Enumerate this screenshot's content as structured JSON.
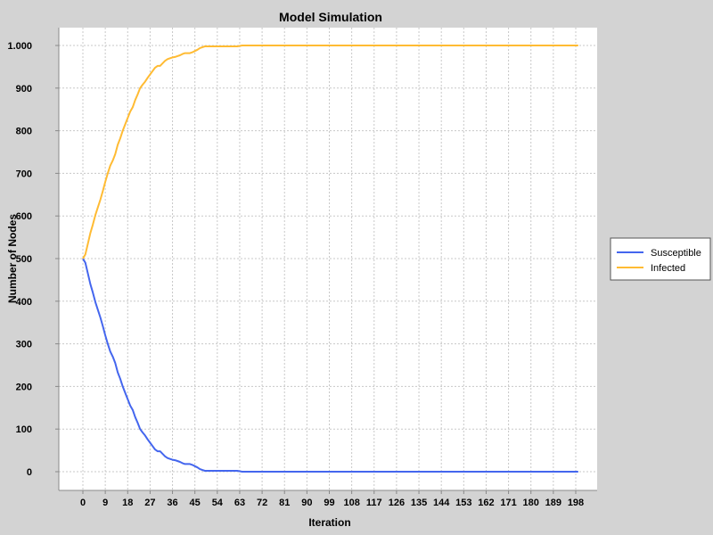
{
  "chart_data": {
    "type": "line",
    "title": "Model Simulation",
    "xlabel": "Iteration",
    "ylabel": "Number of Nodes",
    "xlim": [
      0,
      199
    ],
    "ylim": [
      0,
      1000
    ],
    "x_ticks": [
      0,
      9,
      18,
      27,
      36,
      45,
      54,
      63,
      72,
      81,
      90,
      99,
      108,
      117,
      126,
      135,
      144,
      153,
      162,
      171,
      180,
      189,
      198
    ],
    "y_ticks": [
      0,
      100,
      200,
      300,
      400,
      500,
      600,
      700,
      800,
      900,
      1000
    ],
    "y_tick_labels": [
      "0",
      "100",
      "200",
      "300",
      "400",
      "500",
      "600",
      "700",
      "800",
      "900",
      "1.000"
    ],
    "grid": true,
    "legend_position": "right",
    "series": [
      {
        "name": "Susceptible",
        "color": "#4466ee",
        "points": [
          [
            0,
            500
          ],
          [
            1,
            490
          ],
          [
            2,
            465
          ],
          [
            3,
            440
          ],
          [
            4,
            420
          ],
          [
            5,
            398
          ],
          [
            6,
            380
          ],
          [
            7,
            362
          ],
          [
            8,
            342
          ],
          [
            9,
            320
          ],
          [
            10,
            300
          ],
          [
            11,
            282
          ],
          [
            12,
            270
          ],
          [
            13,
            255
          ],
          [
            14,
            233
          ],
          [
            15,
            218
          ],
          [
            16,
            200
          ],
          [
            17,
            185
          ],
          [
            18,
            170
          ],
          [
            19,
            155
          ],
          [
            20,
            145
          ],
          [
            21,
            128
          ],
          [
            22,
            115
          ],
          [
            23,
            100
          ],
          [
            24,
            92
          ],
          [
            25,
            85
          ],
          [
            26,
            76
          ],
          [
            27,
            68
          ],
          [
            28,
            60
          ],
          [
            29,
            52
          ],
          [
            30,
            48
          ],
          [
            31,
            48
          ],
          [
            32,
            42
          ],
          [
            33,
            36
          ],
          [
            34,
            32
          ],
          [
            35,
            30
          ],
          [
            36,
            28
          ],
          [
            37,
            27
          ],
          [
            38,
            25
          ],
          [
            39,
            23
          ],
          [
            40,
            20
          ],
          [
            41,
            18
          ],
          [
            42,
            18
          ],
          [
            43,
            18
          ],
          [
            44,
            16
          ],
          [
            45,
            13
          ],
          [
            46,
            10
          ],
          [
            47,
            6
          ],
          [
            48,
            4
          ],
          [
            49,
            2
          ],
          [
            50,
            2
          ],
          [
            52,
            2
          ],
          [
            54,
            2
          ],
          [
            56,
            2
          ],
          [
            58,
            2
          ],
          [
            60,
            2
          ],
          [
            62,
            2
          ],
          [
            63,
            1
          ],
          [
            64,
            0
          ],
          [
            70,
            0
          ],
          [
            80,
            0
          ],
          [
            100,
            0
          ],
          [
            120,
            0
          ],
          [
            140,
            0
          ],
          [
            160,
            0
          ],
          [
            180,
            0
          ],
          [
            199,
            0
          ]
        ]
      },
      {
        "name": "Infected",
        "color": "#ffbb33",
        "points": [
          [
            0,
            500
          ],
          [
            1,
            510
          ],
          [
            2,
            535
          ],
          [
            3,
            560
          ],
          [
            4,
            580
          ],
          [
            5,
            602
          ],
          [
            6,
            620
          ],
          [
            7,
            638
          ],
          [
            8,
            658
          ],
          [
            9,
            680
          ],
          [
            10,
            700
          ],
          [
            11,
            718
          ],
          [
            12,
            730
          ],
          [
            13,
            745
          ],
          [
            14,
            767
          ],
          [
            15,
            782
          ],
          [
            16,
            800
          ],
          [
            17,
            815
          ],
          [
            18,
            830
          ],
          [
            19,
            845
          ],
          [
            20,
            855
          ],
          [
            21,
            872
          ],
          [
            22,
            885
          ],
          [
            23,
            900
          ],
          [
            24,
            908
          ],
          [
            25,
            915
          ],
          [
            26,
            924
          ],
          [
            27,
            932
          ],
          [
            28,
            940
          ],
          [
            29,
            948
          ],
          [
            30,
            952
          ],
          [
            31,
            952
          ],
          [
            32,
            958
          ],
          [
            33,
            964
          ],
          [
            34,
            968
          ],
          [
            35,
            970
          ],
          [
            36,
            972
          ],
          [
            37,
            973
          ],
          [
            38,
            975
          ],
          [
            39,
            977
          ],
          [
            40,
            980
          ],
          [
            41,
            982
          ],
          [
            42,
            982
          ],
          [
            43,
            982
          ],
          [
            44,
            984
          ],
          [
            45,
            987
          ],
          [
            46,
            990
          ],
          [
            47,
            994
          ],
          [
            48,
            996
          ],
          [
            49,
            998
          ],
          [
            50,
            998
          ],
          [
            52,
            998
          ],
          [
            54,
            998
          ],
          [
            56,
            998
          ],
          [
            58,
            998
          ],
          [
            60,
            998
          ],
          [
            62,
            998
          ],
          [
            63,
            999
          ],
          [
            64,
            1000
          ],
          [
            70,
            1000
          ],
          [
            80,
            1000
          ],
          [
            100,
            1000
          ],
          [
            120,
            1000
          ],
          [
            140,
            1000
          ],
          [
            160,
            1000
          ],
          [
            180,
            1000
          ],
          [
            199,
            1000
          ]
        ]
      }
    ]
  }
}
